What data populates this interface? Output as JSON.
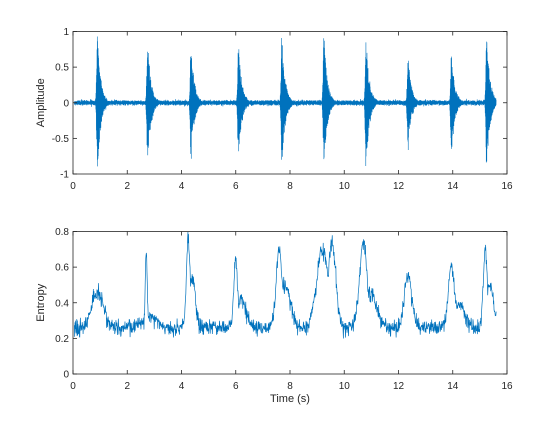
{
  "chart_data": [
    {
      "type": "line",
      "title": "",
      "xlabel": "",
      "ylabel": "Amplitude",
      "xlim": [
        0,
        16
      ],
      "ylim": [
        -1,
        1
      ],
      "xticks": [
        0,
        2,
        4,
        6,
        8,
        10,
        12,
        14,
        16
      ],
      "xticklabels": [
        "0",
        "2",
        "4",
        "6",
        "8",
        "10",
        "12",
        "14",
        "16"
      ],
      "yticks": [
        -1,
        -0.5,
        0,
        0.5,
        1
      ],
      "yticklabels": [
        "-1",
        "-0.5",
        "0",
        "0.5",
        "1"
      ],
      "grid": false,
      "color": "#0072BD",
      "signal_extent": [
        0.05,
        15.6
      ],
      "baseline": {
        "y": 0.0,
        "noise": 0.03
      },
      "bursts": [
        {
          "t": 0.9,
          "peak": 1.0
        },
        {
          "t": 2.75,
          "peak": 0.95
        },
        {
          "t": 4.35,
          "peak": 0.88
        },
        {
          "t": 6.1,
          "peak": 0.85
        },
        {
          "t": 7.7,
          "peak": 1.0
        },
        {
          "t": 9.25,
          "peak": 1.0
        },
        {
          "t": 10.8,
          "peak": 1.0
        },
        {
          "t": 12.35,
          "peak": 0.72
        },
        {
          "t": 13.95,
          "peak": 0.78
        },
        {
          "t": 15.25,
          "peak": 1.0
        }
      ],
      "series": [
        {
          "values": "waveform"
        }
      ]
    },
    {
      "type": "line",
      "title": "",
      "xlabel": "Time (s)",
      "ylabel": "Entropy",
      "xlim": [
        0,
        16
      ],
      "ylim": [
        0,
        0.8
      ],
      "xticks": [
        0,
        2,
        4,
        6,
        8,
        10,
        12,
        14,
        16
      ],
      "xticklabels": [
        "0",
        "2",
        "4",
        "6",
        "8",
        "10",
        "12",
        "14",
        "16"
      ],
      "yticks": [
        0,
        0.2,
        0.4,
        0.6,
        0.8
      ],
      "yticklabels": [
        "0",
        "0.2",
        "0.4",
        "0.6",
        "0.8"
      ],
      "grid": false,
      "color": "#0072BD",
      "signal_extent": [
        0.05,
        15.6
      ],
      "baseline": 0.26,
      "events": [
        {
          "t": 0.9,
          "peak": 0.45,
          "width": 0.3
        },
        {
          "t": 2.7,
          "peak": 0.7,
          "width": 0.05
        },
        {
          "t": 2.8,
          "peak": 0.32,
          "width": 0.4
        },
        {
          "t": 4.25,
          "peak": 0.76,
          "width": 0.1
        },
        {
          "t": 4.4,
          "peak": 0.55,
          "width": 0.15
        },
        {
          "t": 6.0,
          "peak": 0.65,
          "width": 0.1
        },
        {
          "t": 6.2,
          "peak": 0.42,
          "width": 0.25
        },
        {
          "t": 7.6,
          "peak": 0.7,
          "width": 0.15
        },
        {
          "t": 7.8,
          "peak": 0.5,
          "width": 0.3
        },
        {
          "t": 9.2,
          "peak": 0.7,
          "width": 0.3
        },
        {
          "t": 9.55,
          "peak": 0.74,
          "width": 0.2
        },
        {
          "t": 10.7,
          "peak": 0.73,
          "width": 0.2
        },
        {
          "t": 11.0,
          "peak": 0.45,
          "width": 0.3
        },
        {
          "t": 12.35,
          "peak": 0.55,
          "width": 0.2
        },
        {
          "t": 13.95,
          "peak": 0.62,
          "width": 0.15
        },
        {
          "t": 14.2,
          "peak": 0.4,
          "width": 0.3
        },
        {
          "t": 15.2,
          "peak": 0.7,
          "width": 0.1
        },
        {
          "t": 15.35,
          "peak": 0.5,
          "width": 0.2
        }
      ],
      "series": [
        {
          "values": "entropy-trace"
        }
      ]
    }
  ]
}
